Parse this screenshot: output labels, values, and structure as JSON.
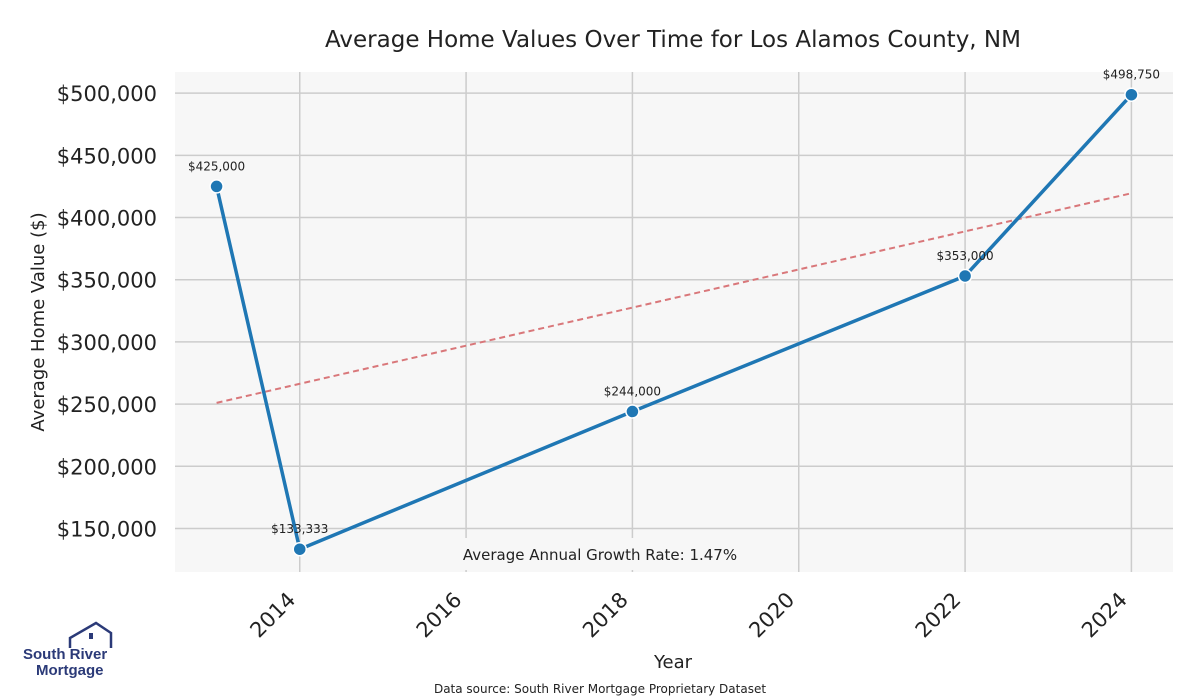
{
  "chart_data": {
    "type": "line",
    "title": "Average Home Values Over Time for Los Alamos County, NM",
    "xlabel": "Year",
    "ylabel": "Average Home Value ($)",
    "x_ticks": [
      "2014",
      "2016",
      "2018",
      "2020",
      "2022",
      "2024"
    ],
    "y_ticks": [
      "$150,000",
      "$200,000",
      "$250,000",
      "$300,000",
      "$350,000",
      "$400,000",
      "$450,000",
      "$500,000"
    ],
    "xlim": [
      2012.5,
      2024.5
    ],
    "ylim": [
      115000,
      517000
    ],
    "grid": true,
    "series": [
      {
        "x": [
          2013,
          2014,
          2018,
          2022,
          2024
        ],
        "y": [
          425000,
          133333,
          244000,
          353000,
          498750
        ],
        "labels": [
          "$425,000",
          "$133,333",
          "$244,000",
          "$353,000",
          "$498,750"
        ],
        "color": "#1f77b4"
      }
    ],
    "trendline": {
      "x": [
        2013,
        2024
      ],
      "y": [
        251000,
        419500
      ],
      "color": "#d9777a",
      "style": "dashed"
    },
    "annotation": "Average Annual Growth Rate: 1.47%",
    "plot_background": "#f7f7f7",
    "grid_color": "#cccccc"
  },
  "footer": {
    "source": "Data source: South River Mortgage Proprietary Dataset"
  },
  "logo": {
    "line1": "South River",
    "line2": "Mortgage",
    "color": "#2b3a78"
  }
}
